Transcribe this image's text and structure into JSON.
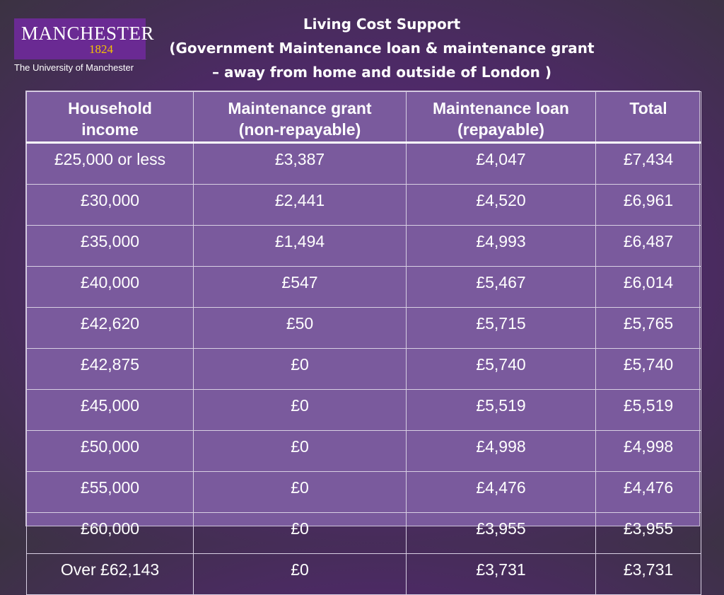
{
  "logo": {
    "wordmark": "MANCHESTER",
    "year": "1824",
    "caption": "The University of Manchester"
  },
  "title": {
    "line1": "Living Cost Support",
    "line2": "(Government Maintenance loan & maintenance grant",
    "line3": "– away from home and outside of London )"
  },
  "table": {
    "headers": [
      {
        "line1": "Household",
        "line2": "income"
      },
      {
        "line1": "Maintenance grant",
        "line2": "(non-repayable)"
      },
      {
        "line1": "Maintenance loan",
        "line2": "(repayable)"
      },
      {
        "line1": "Total",
        "line2": ""
      }
    ],
    "rows": [
      [
        "£25,000 or less",
        "£3,387",
        "£4,047",
        "£7,434"
      ],
      [
        "£30,000",
        "£2,441",
        "£4,520",
        "£6,961"
      ],
      [
        "£35,000",
        "£1,494",
        "£4,993",
        "£6,487"
      ],
      [
        "£40,000",
        "£547",
        "£5,467",
        "£6,014"
      ],
      [
        "£42,620",
        "£50",
        "£5,715",
        "£5,765"
      ],
      [
        "£42,875",
        "£0",
        "£5,740",
        "£5,740"
      ],
      [
        "£45,000",
        "£0",
        "£5,519",
        "£5,519"
      ],
      [
        "£50,000",
        "£0",
        "£4,998",
        "£4,998"
      ],
      [
        "£55,000",
        "£0",
        "£4,476",
        "£4,476"
      ],
      [
        "£60,000",
        "£0",
        "£3,955",
        "£3,955"
      ],
      [
        "Over £62,143",
        "£0",
        "£3,731",
        "£3,731"
      ]
    ]
  },
  "colors": {
    "background": "#4c2a64",
    "logo_background": "#6a2a93",
    "logo_year": "#f5c400",
    "table_fill": "#7a5a9d",
    "text": "#ffffff"
  }
}
